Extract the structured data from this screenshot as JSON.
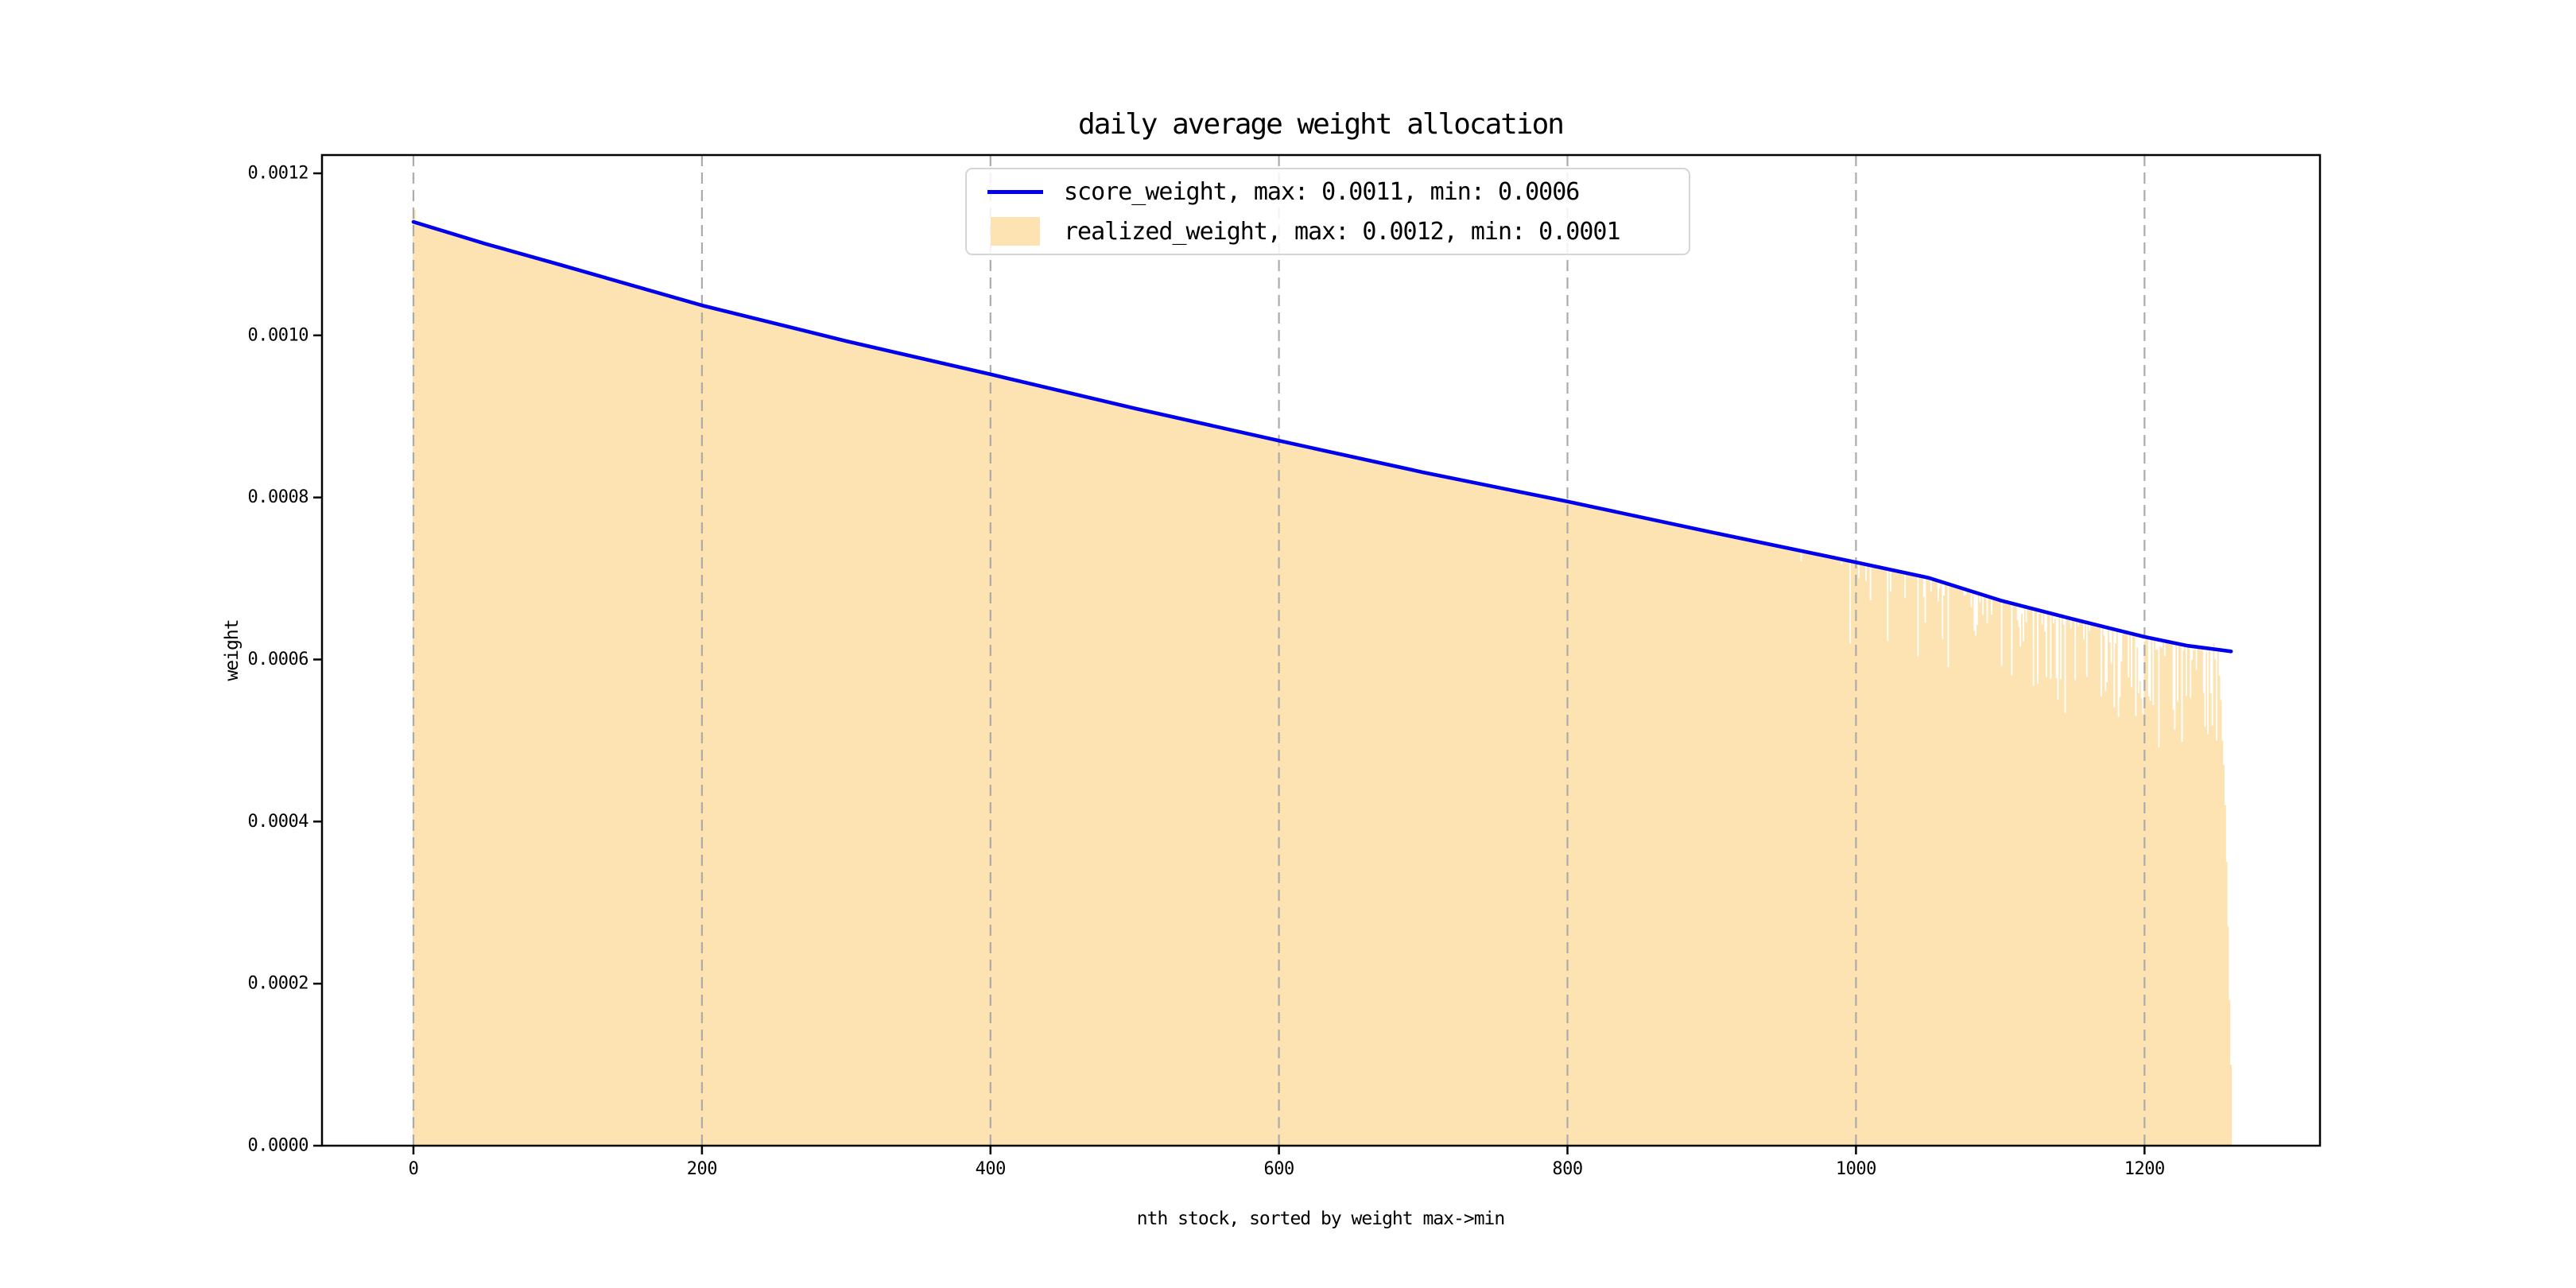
{
  "figure": {
    "background": "#ffffff"
  },
  "chart_data": {
    "type": "area",
    "title": "daily average weight allocation",
    "xlabel": "nth stock, sorted by weight max->min",
    "ylabel": "weight",
    "xlim": [
      -63,
      1323
    ],
    "ylim": [
      0,
      0.001223
    ],
    "x_ticks": [
      0,
      200,
      400,
      600,
      800,
      1000,
      1200
    ],
    "y_ticks": [
      "0.0000",
      "0.0002",
      "0.0004",
      "0.0006",
      "0.0008",
      "0.0010",
      "0.0012"
    ],
    "y_tick_values": [
      0,
      0.0002,
      0.0004,
      0.0006,
      0.0008,
      0.001,
      0.0012
    ],
    "grid": {
      "axis": "x",
      "style": "dashed",
      "color": "#ababab",
      "dash": [
        14,
        8
      ]
    },
    "spine_color": "#000000",
    "legend": {
      "position": "upper center",
      "border_color": "#d5d5d5"
    },
    "series": [
      {
        "name": "score_weight",
        "label": "score_weight, max: 0.0011, min: 0.0006",
        "type": "line",
        "color": "#0000EE",
        "max": 0.0011,
        "min": 0.0006,
        "points": [
          [
            0,
            0.00114
          ],
          [
            50,
            0.001113
          ],
          [
            100,
            0.001088
          ],
          [
            200,
            0.001037
          ],
          [
            300,
            0.000993
          ],
          [
            400,
            0.000952
          ],
          [
            500,
            0.00091
          ],
          [
            600,
            0.00087
          ],
          [
            700,
            0.000831
          ],
          [
            800,
            0.000795
          ],
          [
            900,
            0.000757
          ],
          [
            1000,
            0.00072
          ],
          [
            1050,
            0.000701
          ],
          [
            1100,
            0.000673
          ],
          [
            1150,
            0.00065
          ],
          [
            1200,
            0.000628
          ],
          [
            1230,
            0.000617
          ],
          [
            1260,
            0.00061
          ]
        ]
      },
      {
        "name": "realized_weight",
        "label": "realized_weight, max: 0.0012, min: 0.0001",
        "type": "bar-area",
        "color": "#FCE3B1",
        "max": 0.0012,
        "min": 0.0001,
        "n_stocks": 1261,
        "base_curve": "score_weight",
        "start_bump": 1.5e-05,
        "noise": {
          "start_n": 940,
          "end_n": 1247,
          "seed": 9
        },
        "tail": [
          [
            1248,
            0.00062
          ],
          [
            1249,
            0.0006
          ],
          [
            1250,
            0.0005
          ],
          [
            1251,
            0.00061
          ],
          [
            1252,
            0.00058
          ],
          [
            1253,
            0.00055
          ],
          [
            1254,
            0.0005
          ],
          [
            1255,
            0.00047
          ],
          [
            1256,
            0.00042
          ],
          [
            1257,
            0.00035
          ],
          [
            1258,
            0.00027
          ],
          [
            1259,
            0.00018
          ],
          [
            1260,
            0.0001
          ]
        ]
      }
    ]
  }
}
